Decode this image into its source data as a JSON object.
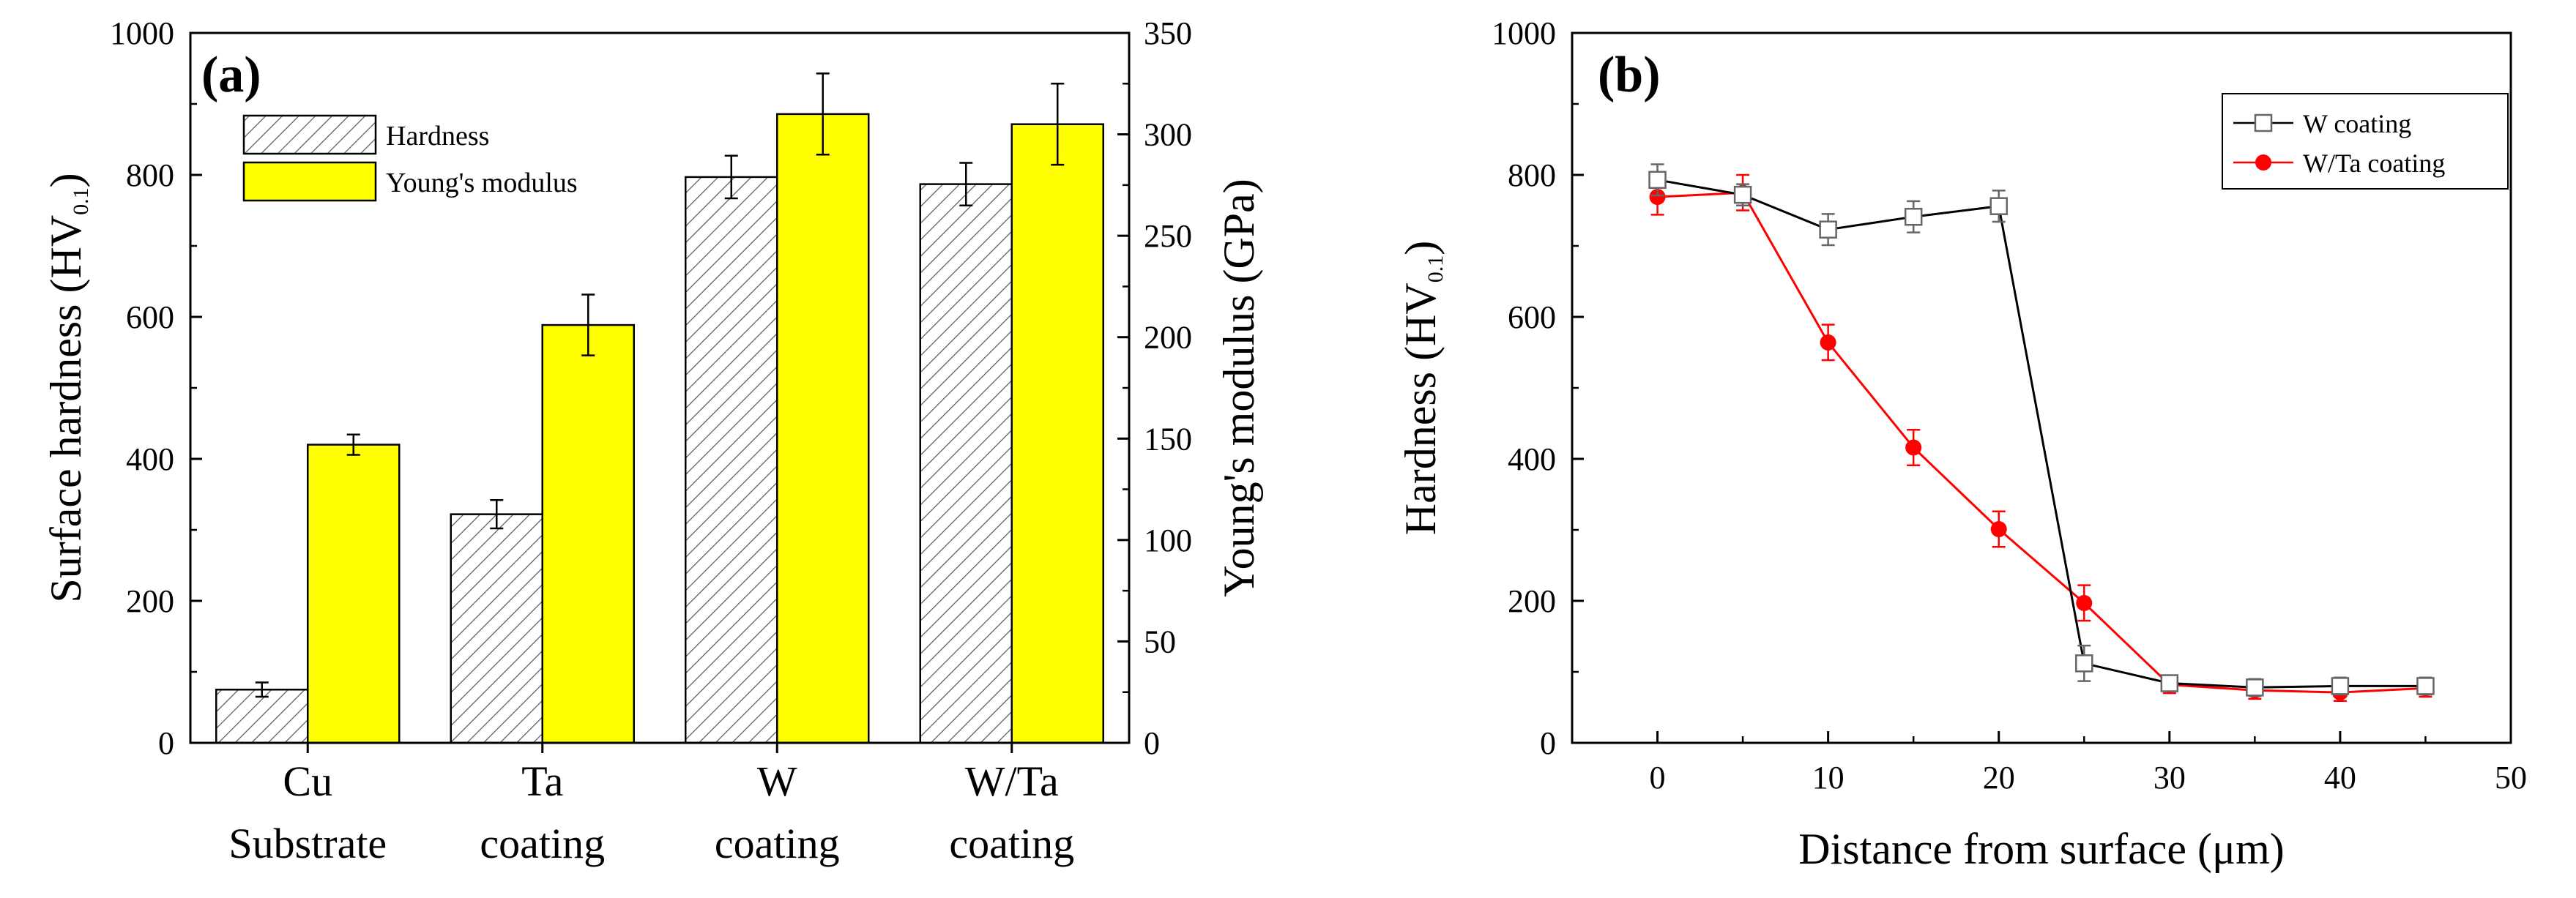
{
  "chart_data": [
    {
      "panel": "(a)",
      "type": "bar",
      "categories": [
        [
          "Cu",
          "Substrate"
        ],
        [
          "Ta",
          "coating"
        ],
        [
          "W",
          "coating"
        ],
        [
          "W/Ta",
          "coating"
        ]
      ],
      "left_axis": {
        "label_main": "Surface hardness (HV",
        "label_sub": "0.1",
        "label_end": ")",
        "lim": [
          0,
          1000
        ],
        "ticks": [
          0,
          200,
          400,
          600,
          800,
          1000
        ]
      },
      "right_axis": {
        "label": "Young's modulus (GPa)",
        "lim": [
          0,
          350
        ],
        "ticks": [
          0,
          50,
          100,
          150,
          200,
          250,
          300,
          350
        ]
      },
      "series": [
        {
          "name": "Hardness",
          "axis": "left",
          "values": [
            75,
            322,
            797,
            787
          ],
          "errors": [
            10,
            20,
            30,
            30
          ],
          "fill": "#ffffff",
          "hatch": true
        },
        {
          "name": "Young's modulus",
          "axis": "right",
          "values": [
            147,
            206,
            310,
            305
          ],
          "errors": [
            5,
            15,
            20,
            20
          ],
          "fill": "#ffff00",
          "hatch": false
        }
      ]
    },
    {
      "panel": "(b)",
      "type": "line",
      "xlabel": "Distance from surface (μm)",
      "ylabel_main": "Hardness (HV",
      "ylabel_sub": "0.1",
      "ylabel_end": ")",
      "xlim": [
        -5,
        50
      ],
      "ylim": [
        0,
        1000
      ],
      "xticks": [
        0,
        10,
        20,
        30,
        40,
        50
      ],
      "yticks": [
        0,
        200,
        400,
        600,
        800,
        1000
      ],
      "series": [
        {
          "name": "W coating",
          "color": "#000000",
          "marker": "open-square",
          "x": [
            0,
            5,
            10,
            15,
            20,
            25,
            30,
            35,
            40,
            45
          ],
          "y": [
            793,
            772,
            723,
            741,
            756,
            112,
            84,
            78,
            80,
            80
          ],
          "err": [
            22,
            15,
            22,
            22,
            22,
            25,
            10,
            12,
            12,
            12
          ]
        },
        {
          "name": "W/Ta coating",
          "color": "#ff0000",
          "marker": "filled-circle",
          "x": [
            0,
            5,
            10,
            15,
            20,
            25,
            30,
            35,
            40,
            45
          ],
          "y": [
            769,
            775,
            564,
            416,
            301,
            197,
            82,
            74,
            71,
            77
          ],
          "err": [
            25,
            25,
            25,
            25,
            25,
            25,
            12,
            12,
            12,
            12
          ]
        }
      ]
    }
  ]
}
